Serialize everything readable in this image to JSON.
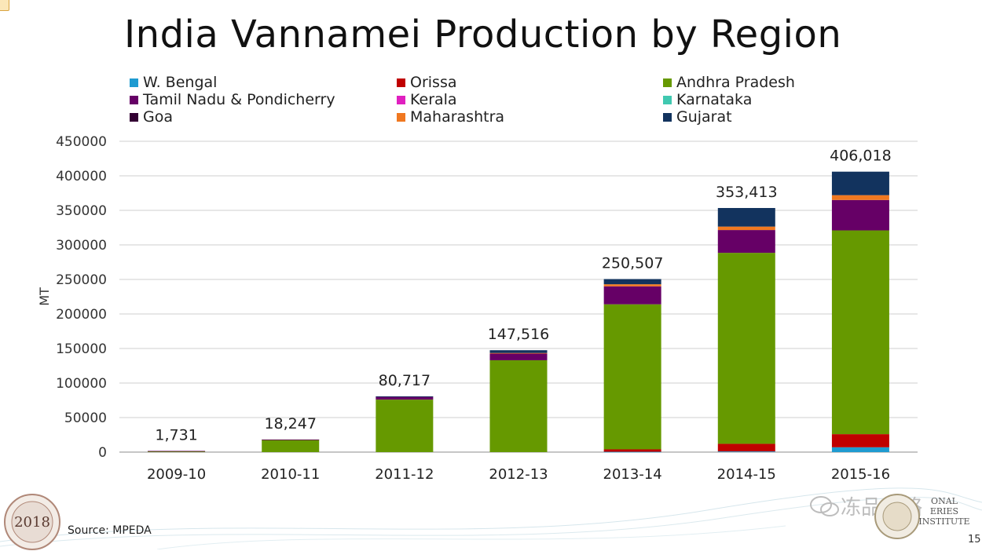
{
  "title": "India Vannamei Production by Region",
  "source": "Source: MPEDA",
  "page_number": "15",
  "seal_left_text": "2018",
  "institute_text": [
    "ONAL",
    "ERIES",
    "INSTITUTE"
  ],
  "watermark_text": "冻品攻略",
  "chart_data": {
    "type": "bar",
    "stacked": true,
    "categories": [
      "2009-10",
      "2010-11",
      "2011-12",
      "2012-13",
      "2013-14",
      "2014-15",
      "2015-16"
    ],
    "ylabel": "MT",
    "xlabel": "",
    "ylim": [
      0,
      450000
    ],
    "yticks": [
      0,
      50000,
      100000,
      150000,
      200000,
      250000,
      300000,
      350000,
      400000,
      450000
    ],
    "ytick_labels": [
      "0",
      "50000",
      "100000",
      "150000",
      "200000",
      "250000",
      "300000",
      "350000",
      "400000",
      "450000"
    ],
    "grid": true,
    "totals_labels": [
      "1,731",
      "18,247",
      "80,717",
      "147,516",
      "250,507",
      "353,413",
      "406,018"
    ],
    "totals": [
      1731,
      18247,
      80717,
      147516,
      250507,
      353413,
      406018
    ],
    "series": [
      {
        "name": "W. Bengal",
        "color": "#1f9bd1",
        "values": [
          0,
          0,
          0,
          0,
          500,
          1000,
          7000
        ]
      },
      {
        "name": "Orissa",
        "color": "#c00000",
        "values": [
          0,
          0,
          0,
          0,
          3500,
          11000,
          19000
        ]
      },
      {
        "name": "Andhra Pradesh",
        "color": "#669900",
        "values": [
          1500,
          18000,
          76000,
          133000,
          210000,
          276500,
          295000
        ]
      },
      {
        "name": "Tamil Nadu & Pondicherry",
        "color": "#660066",
        "values": [
          231,
          247,
          4200,
          10000,
          26000,
          33000,
          44000
        ]
      },
      {
        "name": "Kerala",
        "color": "#e020c0",
        "values": [
          0,
          0,
          0,
          0,
          0,
          0,
          0
        ]
      },
      {
        "name": "Karnataka",
        "color": "#40c8b0",
        "values": [
          0,
          0,
          0,
          0,
          0,
          0,
          0
        ]
      },
      {
        "name": "Goa",
        "color": "#330033",
        "values": [
          0,
          0,
          0,
          0,
          0,
          0,
          0
        ]
      },
      {
        "name": "Maharashtra",
        "color": "#f07820",
        "values": [
          0,
          0,
          0,
          500,
          3000,
          5000,
          7000
        ]
      },
      {
        "name": "Gujarat",
        "color": "#12335e",
        "values": [
          0,
          0,
          517,
          4016,
          7507,
          26913,
          34018
        ]
      }
    ]
  }
}
